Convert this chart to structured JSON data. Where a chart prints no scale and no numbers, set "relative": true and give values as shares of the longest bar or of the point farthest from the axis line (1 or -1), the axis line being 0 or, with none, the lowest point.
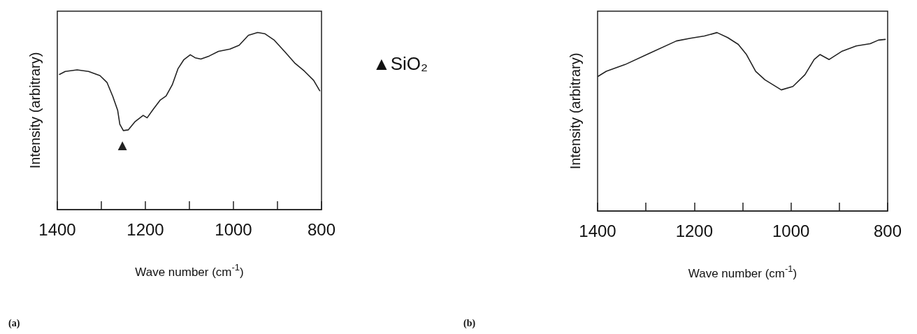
{
  "chart_data": [
    {
      "type": "line",
      "relative": true,
      "xlabel": "Wave number (cm$^{-1}$)",
      "ylabel": "Intensity (arbitrary)",
      "xlim": [
        1400,
        800
      ],
      "xticks": [
        1400,
        {
          "value": 1300,
          "label": null
        },
        1200,
        {
          "value": 1100,
          "label": null
        },
        1000,
        {
          "value": 900,
          "label": null
        },
        800
      ],
      "grid": false,
      "marker": "none",
      "line_style": "solid",
      "x": [
        1395,
        1382,
        1355,
        1329,
        1303,
        1287,
        1274,
        1263,
        1258,
        1250,
        1239,
        1224,
        1205,
        1196,
        1182,
        1166,
        1153,
        1139,
        1126,
        1113,
        1098,
        1087,
        1074,
        1055,
        1034,
        1008,
        987,
        966,
        945,
        929,
        908,
        882,
        861,
        839,
        818,
        804
      ],
      "series": [
        {
          "color": "#222222",
          "values": [
            0.763,
            0.78,
            0.789,
            0.78,
            0.756,
            0.717,
            0.639,
            0.561,
            0.482,
            0.446,
            0.45,
            0.495,
            0.532,
            0.518,
            0.567,
            0.619,
            0.641,
            0.704,
            0.795,
            0.845,
            0.874,
            0.857,
            0.85,
            0.867,
            0.893,
            0.906,
            0.928,
            0.984,
            1.0,
            0.993,
            0.958,
            0.887,
            0.828,
            0.782,
            0.73,
            0.671
          ]
        }
      ],
      "annotations": [
        {
          "text": "▲",
          "x": 1252,
          "y": 0.446
        },
        "▲SiO₂",
        "(a)"
      ]
    },
    {
      "type": "line",
      "relative": true,
      "xlabel": "Wave number (cm$^{-1}$)",
      "ylabel": "Intensity (arbitrary)",
      "xlim": [
        1400,
        800
      ],
      "xticks": [
        1400,
        {
          "value": 1300,
          "label": null
        },
        1200,
        {
          "value": 1100,
          "label": null
        },
        1000,
        {
          "value": 900,
          "label": null
        },
        800
      ],
      "grid": false,
      "marker": "none",
      "line_style": "solid",
      "x": [
        1399,
        1382,
        1343,
        1295,
        1237,
        1208,
        1179,
        1153,
        1131,
        1109,
        1092,
        1073,
        1054,
        1020,
        996,
        971,
        952,
        940,
        921,
        894,
        865,
        836,
        819,
        805
      ],
      "series": [
        {
          "color": "#222222",
          "values": [
            0.755,
            0.783,
            0.821,
            0.881,
            0.953,
            0.968,
            0.981,
            1.0,
            0.972,
            0.934,
            0.877,
            0.783,
            0.736,
            0.679,
            0.698,
            0.764,
            0.849,
            0.877,
            0.849,
            0.896,
            0.925,
            0.938,
            0.958,
            0.962
          ]
        }
      ],
      "annotations": [
        "(b)"
      ]
    }
  ]
}
